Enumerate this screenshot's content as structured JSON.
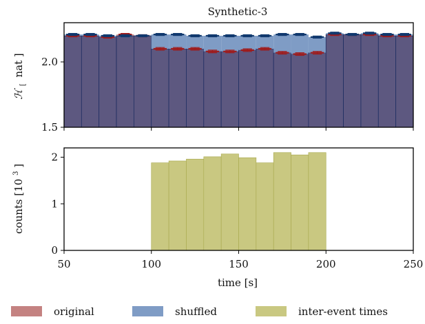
{
  "chart_data": [
    {
      "type": "bar",
      "panel": "top",
      "title": "Synthetic-3",
      "ylabel_main": "ℋ",
      "ylabel_sub": "[",
      "ylabel_rest": "nat ]",
      "xlim": [
        50,
        250
      ],
      "ylim": [
        1.5,
        2.3
      ],
      "yticks": [
        {
          "value": 1.5,
          "label": "1.5"
        },
        {
          "value": 2.0,
          "label": "2.0"
        }
      ],
      "bin_width": 10,
      "x": [
        50,
        60,
        70,
        80,
        90,
        100,
        110,
        120,
        130,
        140,
        150,
        160,
        170,
        180,
        190,
        200,
        210,
        220,
        230,
        240
      ],
      "series": [
        {
          "name": "original",
          "color": "#a01a1a",
          "fill": "#c48281",
          "values": [
            2.2,
            2.2,
            2.19,
            2.21,
            2.2,
            2.1,
            2.1,
            2.1,
            2.08,
            2.08,
            2.09,
            2.1,
            2.07,
            2.06,
            2.07,
            2.21,
            2.21,
            2.21,
            2.2,
            2.2
          ],
          "err": [
            0.008,
            0.008,
            0.008,
            0.008,
            0.008,
            0.01,
            0.01,
            0.01,
            0.01,
            0.01,
            0.01,
            0.01,
            0.01,
            0.01,
            0.01,
            0.008,
            0.008,
            0.008,
            0.008,
            0.008
          ]
        },
        {
          "name": "shuffled",
          "color": "#11396e",
          "fill": "#7f9cc5",
          "values": [
            2.21,
            2.21,
            2.2,
            2.2,
            2.2,
            2.21,
            2.21,
            2.2,
            2.2,
            2.2,
            2.2,
            2.2,
            2.21,
            2.21,
            2.19,
            2.22,
            2.21,
            2.22,
            2.21,
            2.21
          ],
          "err": [
            0.008,
            0.008,
            0.008,
            0.008,
            0.008,
            0.008,
            0.008,
            0.008,
            0.008,
            0.008,
            0.008,
            0.008,
            0.008,
            0.008,
            0.008,
            0.008,
            0.008,
            0.008,
            0.008,
            0.008
          ]
        }
      ],
      "overlap_fill": "#5d5880",
      "bin_edge_color": "#1f2e63"
    },
    {
      "type": "bar",
      "panel": "bottom",
      "ylabel": "counts [10",
      "ylabel_sup": "3",
      "ylabel_end": "]",
      "xlabel": "time [s]",
      "xlim": [
        50,
        250
      ],
      "ylim": [
        0,
        2.2
      ],
      "yticks": [
        {
          "value": 0,
          "label": "0"
        },
        {
          "value": 1,
          "label": "1"
        },
        {
          "value": 2,
          "label": "2"
        }
      ],
      "xticks": [
        {
          "value": 50,
          "label": "50"
        },
        {
          "value": 100,
          "label": "100"
        },
        {
          "value": 150,
          "label": "150"
        },
        {
          "value": 200,
          "label": "200"
        },
        {
          "value": 250,
          "label": "250"
        }
      ],
      "bin_width": 10,
      "x": [
        100,
        110,
        120,
        130,
        140,
        150,
        160,
        170,
        180,
        190
      ],
      "series": [
        {
          "name": "inter-event times",
          "color": "#c9c881",
          "edge": "#a7a84d",
          "values": [
            1.88,
            1.92,
            1.96,
            2.01,
            2.07,
            1.99,
            1.88,
            2.1,
            2.05,
            2.1
          ]
        }
      ]
    }
  ],
  "legend": {
    "position": "bottom",
    "items": [
      {
        "label": "original",
        "color": "#c48281"
      },
      {
        "label": "shuffled",
        "color": "#7f9cc5"
      },
      {
        "label": "inter-event times",
        "color": "#c9c881"
      }
    ]
  }
}
